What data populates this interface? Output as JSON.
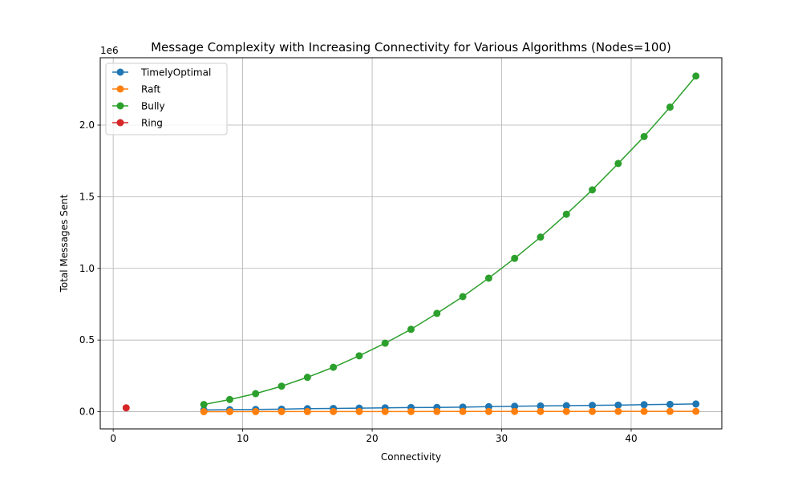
{
  "chart_data": {
    "type": "line",
    "title": "Message Complexity with Increasing Connectivity for Various Algorithms (Nodes=100)",
    "xlabel": "Connectivity",
    "ylabel": "Total Messages Sent",
    "y_offset_label": "1e6",
    "xlim": [
      -1,
      47
    ],
    "ylim": [
      -0.12,
      2.47
    ],
    "y_unit_scale": 1000000,
    "x_ticks": [
      0,
      10,
      20,
      30,
      40
    ],
    "x_tick_labels": [
      "0",
      "10",
      "20",
      "30",
      "40"
    ],
    "y_ticks": [
      0,
      0.5,
      1.0,
      1.5,
      2.0
    ],
    "y_tick_labels": [
      "0.0",
      "0.5",
      "1.0",
      "1.5",
      "2.0"
    ],
    "grid": true,
    "legend_position": "top-left",
    "series": [
      {
        "name": "TimelyOptimal",
        "color": "#1f77b4",
        "x": [
          7,
          9,
          11,
          13,
          15,
          17,
          19,
          21,
          23,
          25,
          27,
          29,
          31,
          33,
          35,
          37,
          39,
          41,
          43,
          45
        ],
        "y": [
          0.012,
          0.014,
          0.016,
          0.018,
          0.021,
          0.023,
          0.025,
          0.027,
          0.029,
          0.03,
          0.032,
          0.035,
          0.038,
          0.04,
          0.042,
          0.044,
          0.046,
          0.049,
          0.051,
          0.054
        ]
      },
      {
        "name": "Raft",
        "color": "#ff7f0e",
        "x": [
          7,
          9,
          11,
          13,
          15,
          17,
          19,
          21,
          23,
          25,
          27,
          29,
          31,
          33,
          35,
          37,
          39,
          41,
          43,
          45
        ],
        "y": [
          0.0005,
          0.0006,
          0.0007,
          0.0008,
          0.0009,
          0.001,
          0.0011,
          0.0012,
          0.0013,
          0.0014,
          0.0015,
          0.0016,
          0.0017,
          0.0018,
          0.0019,
          0.002,
          0.0021,
          0.0022,
          0.0023,
          0.0024
        ]
      },
      {
        "name": "Bully",
        "color": "#2ca02c",
        "x": [
          7,
          9,
          11,
          13,
          15,
          17,
          19,
          21,
          23,
          25,
          27,
          29,
          31,
          33,
          35,
          37,
          39,
          41,
          43,
          45
        ],
        "y": [
          0.05,
          0.085,
          0.126,
          0.178,
          0.24,
          0.31,
          0.39,
          0.478,
          0.575,
          0.686,
          0.803,
          0.932,
          1.07,
          1.218,
          1.378,
          1.548,
          1.732,
          1.92,
          2.125,
          2.342
        ]
      },
      {
        "name": "Ring",
        "color": "#d62728",
        "x": [
          1
        ],
        "y": [
          0.027
        ]
      }
    ]
  }
}
